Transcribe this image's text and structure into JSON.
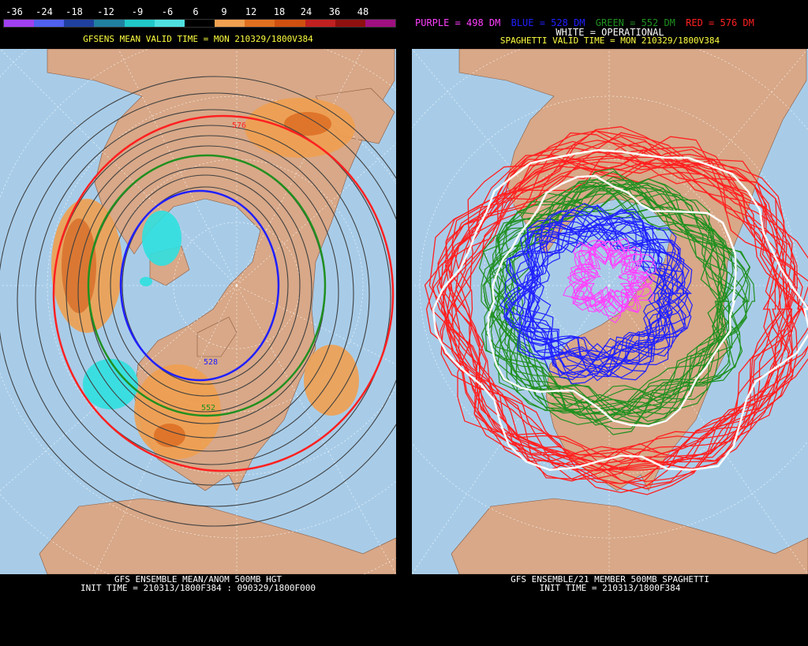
{
  "left": {
    "scale_labels": [
      "-36",
      "-24",
      "-18",
      "-12",
      "-9",
      "-6",
      "6",
      "9",
      "12",
      "18",
      "24",
      "36",
      "48"
    ],
    "scale_colors": [
      "#a040f0",
      "#5060f0",
      "#2040a0",
      "#2080a0",
      "#20c8c8",
      "#50e0e0",
      "#000000",
      "#f0a050",
      "#e07020",
      "#d05010",
      "#c02020",
      "#901010",
      "#a01080"
    ],
    "title": "GFSENS MEAN VALID TIME = MON 210329/1800V384",
    "contour_labels": [
      "576",
      "528",
      "552"
    ],
    "footer_line1": "GFS ENSEMBLE MEAN/ANOM 500MB HGT",
    "footer_line2": "INIT TIME = 210313/1800F384 : 090329/1800F000"
  },
  "right": {
    "legend": {
      "purple": "PURPLE = 498 DM",
      "blue": "BLUE = 528 DM",
      "green": "GREEN = 552 DM",
      "red": "RED = 576 DM",
      "white": "WHITE = OPERATIONAL"
    },
    "title": "SPAGHETTI VALID TIME = MON 210329/1800V384",
    "footer_line1": "GFS ENSEMBLE/21 MEMBER 500MB SPAGHETTI",
    "footer_line2": "INIT TIME = 210313/1800F384"
  },
  "colors": {
    "ocean": "#a8cce8",
    "land": "#d8a888",
    "purple": "#ff40ff",
    "blue": "#2020ff",
    "green": "#209020",
    "red": "#ff2020",
    "white": "#ffffff",
    "anom_orange": "#f0a050",
    "anom_dark": "#e07020",
    "anom_cyan": "#30e0e0"
  }
}
